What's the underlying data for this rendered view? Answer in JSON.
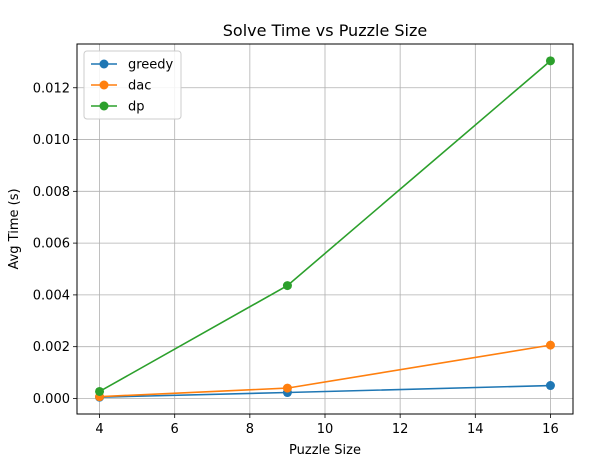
{
  "chart_data": {
    "type": "line",
    "title": "Solve Time vs Puzzle Size",
    "xlabel": "Puzzle Size",
    "ylabel": "Avg Time (s)",
    "x": [
      4,
      9,
      16
    ],
    "series": [
      {
        "name": "greedy",
        "color": "#1f77b4",
        "values": [
          5e-05,
          0.00023,
          0.0005
        ]
      },
      {
        "name": "dac",
        "color": "#ff7f0e",
        "values": [
          7e-05,
          0.0004,
          0.00206
        ]
      },
      {
        "name": "dp",
        "color": "#2ca02c",
        "values": [
          0.00027,
          0.00436,
          0.01304
        ]
      }
    ],
    "xlim": [
      3.4,
      16.6
    ],
    "ylim": [
      -0.0006,
      0.01369
    ],
    "xticks": [
      4,
      6,
      8,
      10,
      12,
      14,
      16
    ],
    "yticks": [
      0.0,
      0.002,
      0.004,
      0.006,
      0.008,
      0.01,
      0.012
    ],
    "ytick_labels": [
      "0.000",
      "0.002",
      "0.004",
      "0.006",
      "0.008",
      "0.010",
      "0.012"
    ],
    "grid": true,
    "legend_position": "top-left"
  }
}
